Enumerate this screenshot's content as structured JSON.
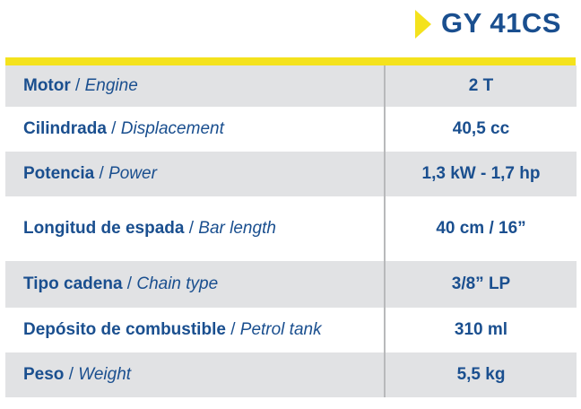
{
  "model": "GY 41CS",
  "colors": {
    "accent": "#f4e21d",
    "text": "#1a4f8f",
    "row_shade": "#e1e2e4",
    "divider": "#b8b9bb"
  },
  "rows": [
    {
      "label_es": "Motor",
      "separator": " / ",
      "label_en": "Engine",
      "value": "2 T"
    },
    {
      "label_es": "Cilindrada",
      "separator": " / ",
      "label_en": "Displacement",
      "value": "40,5 cc"
    },
    {
      "label_es": "Potencia",
      "separator": " / ",
      "label_en": "Power",
      "value": "1,3 kW - 1,7 hp"
    },
    {
      "label_es": "Longitud de espada",
      "separator": " / ",
      "label_en": "Bar length",
      "value": "40 cm / 16”"
    },
    {
      "label_es": "Tipo cadena",
      "separator": " / ",
      "label_en": "Chain type",
      "value": "3/8” LP"
    },
    {
      "label_es": "Depósito de combustible",
      "separator": " / ",
      "label_en": "Petrol tank",
      "value": "310 ml"
    },
    {
      "label_es": "Peso",
      "separator": " / ",
      "label_en": "Weight",
      "value": "5,5 kg"
    }
  ]
}
